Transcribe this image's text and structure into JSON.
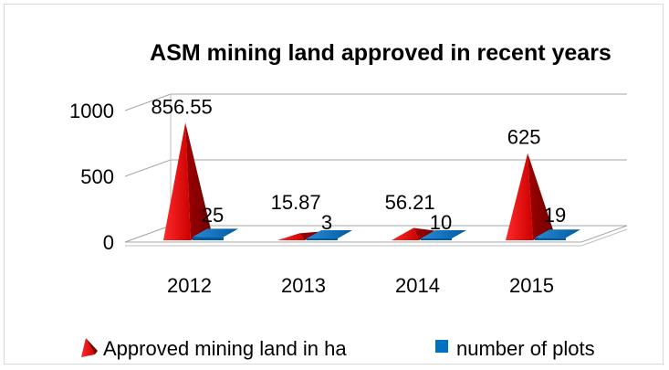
{
  "chart_data": {
    "type": "bar",
    "subtype": "3d-pyramid",
    "title": "ASM mining land approved in recent years",
    "categories": [
      "2012",
      "2013",
      "2014",
      "2015"
    ],
    "series": [
      {
        "name": "Approved mining land in ha",
        "values": [
          856.55,
          15.87,
          56.21,
          625
        ],
        "data_labels": [
          "856.55",
          "15.87",
          "56.21",
          "625"
        ],
        "color": "#c00000"
      },
      {
        "name": "number of plots",
        "values": [
          25,
          3,
          10,
          19
        ],
        "data_labels": [
          "25",
          "3",
          "10",
          "19"
        ],
        "color": "#0070c0"
      }
    ],
    "y_ticks": [
      "0",
      "500",
      "1000"
    ],
    "ylim": [
      0,
      1000
    ],
    "grid": true,
    "legend_position": "bottom"
  }
}
